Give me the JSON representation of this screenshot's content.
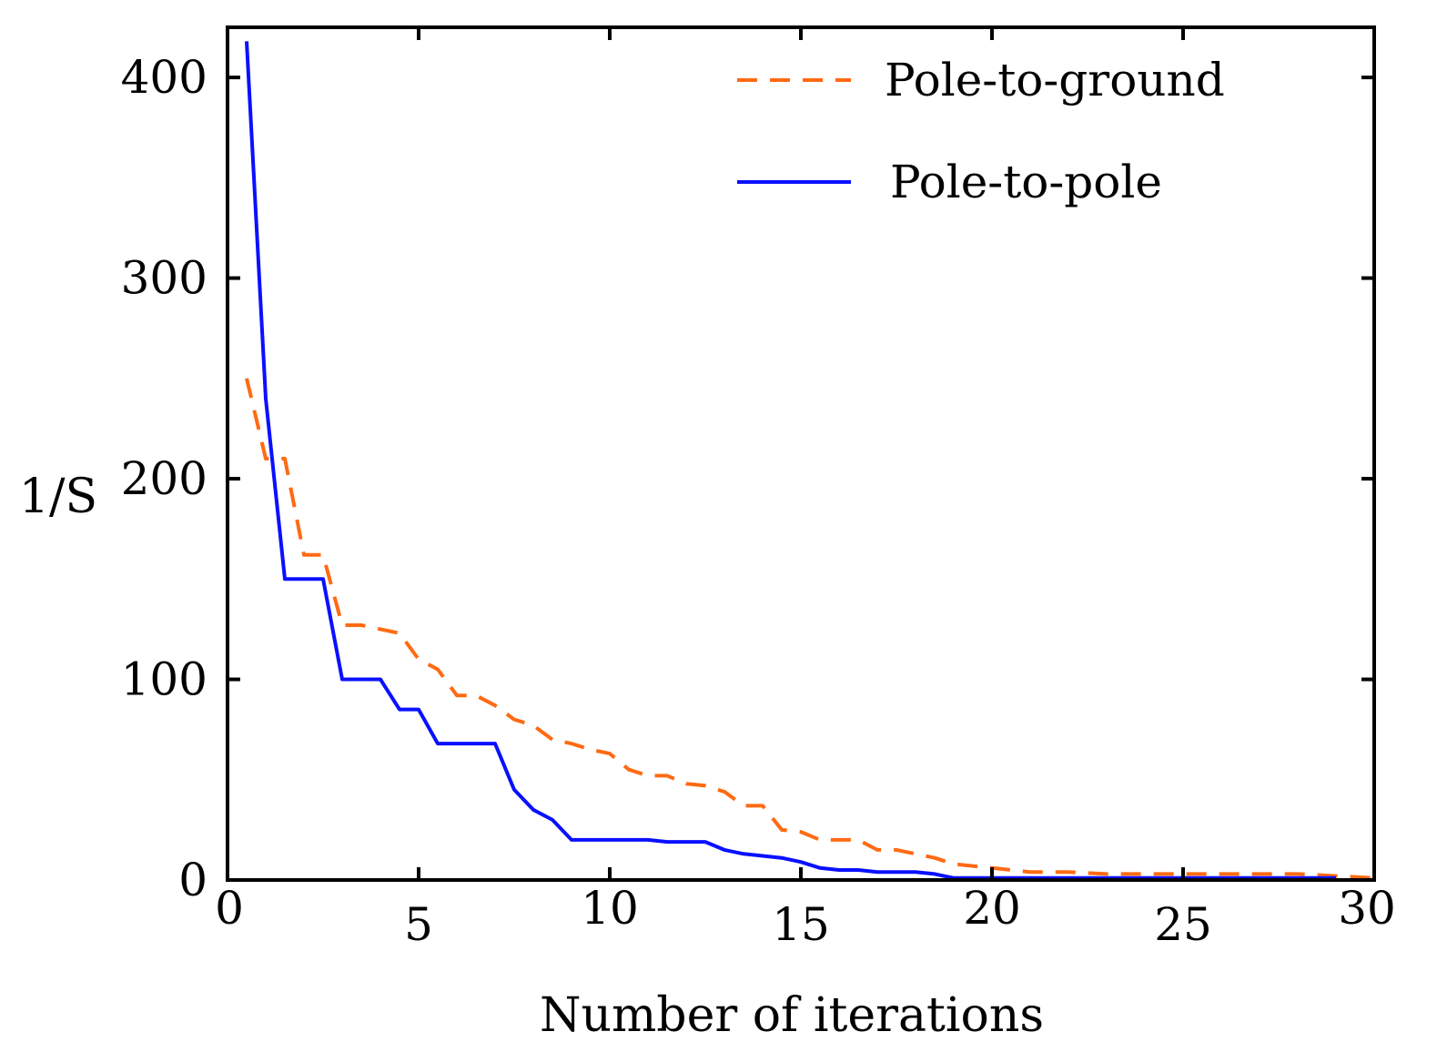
{
  "chart_data": {
    "type": "line",
    "title": "",
    "xlabel": "Number of iterations",
    "ylabel": "1/S",
    "xlim": [
      0,
      30
    ],
    "ylim": [
      0,
      430
    ],
    "xticks": [
      0,
      5,
      10,
      15,
      20,
      25,
      30
    ],
    "yticks": [
      0,
      100,
      200,
      300,
      400
    ],
    "legend_position": "top-right",
    "series": [
      {
        "name": "Pole-to-ground",
        "style": "dashed",
        "color": "#ff6a13",
        "x": [
          0.5,
          1.0,
          1.5,
          2.0,
          2.5,
          3.0,
          3.5,
          4.0,
          4.5,
          5.0,
          5.5,
          6.0,
          6.5,
          7.0,
          7.5,
          8.0,
          8.5,
          9.0,
          9.5,
          10.0,
          10.5,
          11.0,
          11.5,
          12.0,
          12.5,
          13.0,
          13.5,
          14.0,
          14.5,
          15.0,
          15.5,
          16.0,
          16.5,
          17.0,
          17.5,
          18.0,
          18.5,
          19.0,
          19.5,
          20.0,
          20.5,
          21.0,
          22.0,
          23.0,
          24.0,
          25.0,
          26.0,
          27.0,
          28.0,
          29.0,
          30.0
        ],
        "y": [
          250,
          210,
          210,
          162,
          162,
          127,
          127,
          125,
          123,
          110,
          105,
          92,
          92,
          87,
          80,
          77,
          70,
          68,
          65,
          63,
          55,
          52,
          52,
          48,
          47,
          44,
          37,
          37,
          25,
          24,
          20,
          20,
          20,
          15,
          15,
          13,
          11,
          8,
          7,
          6,
          5,
          4,
          4,
          3,
          3,
          3,
          3,
          3,
          3,
          2,
          1
        ]
      },
      {
        "name": "Pole-to-pole",
        "style": "solid",
        "color": "#0a10ff",
        "x": [
          0.5,
          1.0,
          1.5,
          2.0,
          2.5,
          3.0,
          3.5,
          4.0,
          4.5,
          5.0,
          5.5,
          6.0,
          6.5,
          7.0,
          7.5,
          8.0,
          8.5,
          9.0,
          9.5,
          10.0,
          10.5,
          11.0,
          11.5,
          12.0,
          12.5,
          13.0,
          13.5,
          14.0,
          14.5,
          15.0,
          15.5,
          16.0,
          16.5,
          17.0,
          17.5,
          18.0,
          18.5,
          19.0,
          19.5,
          20.0,
          21.0,
          22.0,
          23.0,
          24.0,
          25.0,
          26.0,
          27.0,
          28.0,
          29.0
        ],
        "y": [
          418,
          240,
          150,
          150,
          150,
          100,
          100,
          100,
          85,
          85,
          68,
          68,
          68,
          68,
          45,
          35,
          30,
          20,
          20,
          20,
          20,
          20,
          19,
          19,
          19,
          15,
          13,
          12,
          11,
          9,
          6,
          5,
          5,
          4,
          4,
          4,
          3,
          1,
          1,
          1,
          1,
          1,
          1,
          1,
          1,
          1,
          1,
          1,
          1
        ]
      }
    ]
  }
}
